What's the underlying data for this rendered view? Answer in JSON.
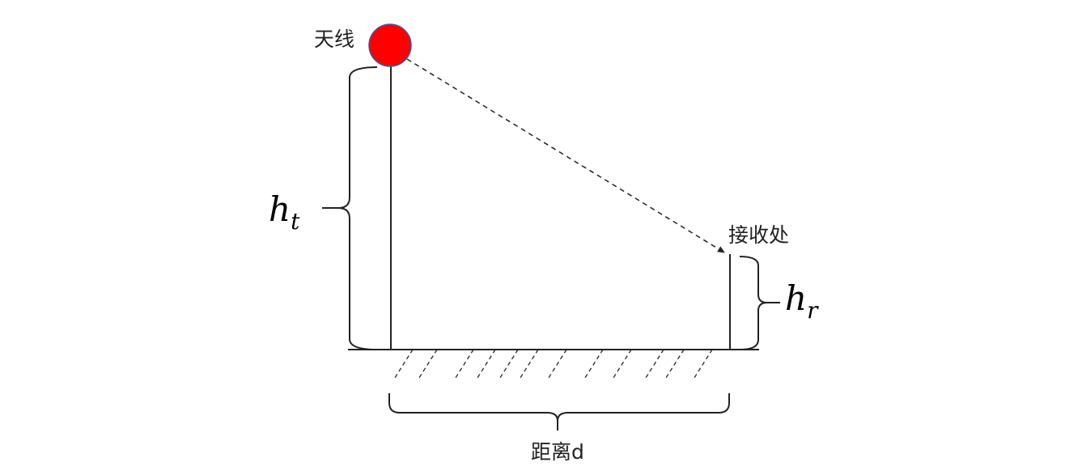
{
  "labels": {
    "antenna": "天线",
    "receiver": "接收处",
    "distance": "距离d"
  },
  "symbols": {
    "tx_height_base": "h",
    "tx_height_sub": "t",
    "rx_height_base": "h",
    "rx_height_sub": "r"
  },
  "colors": {
    "antenna_fill": "#ff0000",
    "antenna_stroke": "#3b5ba5",
    "line": "#222222"
  }
}
